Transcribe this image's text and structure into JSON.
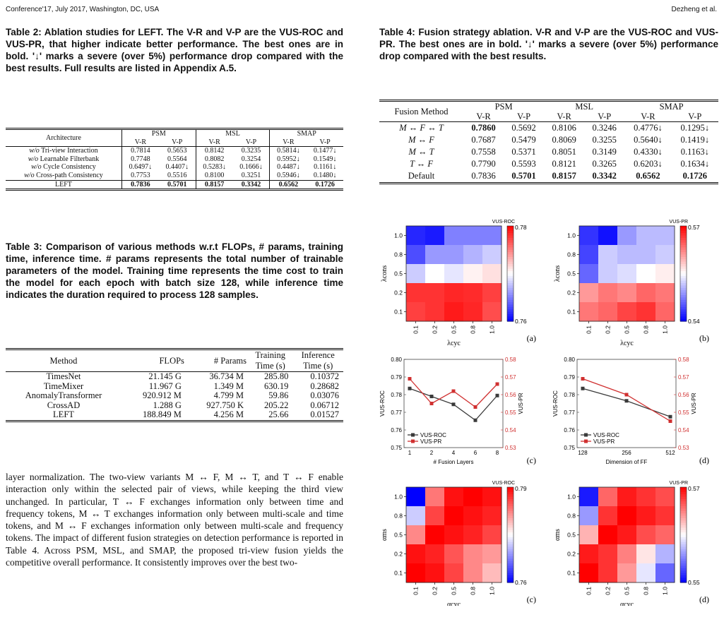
{
  "header": {
    "left": "Conference'17, July 2017, Washington, DC, USA",
    "right": "Dezheng et al."
  },
  "table2": {
    "caption": "Table 2: Ablation studies for LEFT. The V-R and V-P are the VUS-ROC and VUS-PR, that higher indicate better performance. The best ones are in bold. '↓' marks a severe (over 5%) performance drop compared with the best results. Full results are listed in Appendix A.5.",
    "col_arch": "Architecture",
    "datasets": [
      "PSM",
      "MSL",
      "SMAP"
    ],
    "sub": [
      "V-R",
      "V-P",
      "V-R",
      "V-P",
      "V-R",
      "V-P"
    ],
    "rows": [
      {
        "label": "w/o Tri-view Interaction",
        "cells": [
          "0.7814",
          "0.5653",
          "0.8142",
          "0.3235",
          "0.5814↓",
          "0.1477↓"
        ]
      },
      {
        "label": "w/o Learnable Filterbank",
        "cells": [
          "0.7748",
          "0.5564",
          "0.8082",
          "0.3254",
          "0.5952↓",
          "0.1549↓"
        ]
      },
      {
        "label": "w/o Cycle Consistency",
        "cells": [
          "0.6497↓",
          "0.4407↓",
          "0.5283↓",
          "0.1666↓",
          "0.4487↓",
          "0.1161↓"
        ]
      },
      {
        "label": "w/o Cross-path Consistency",
        "cells": [
          "0.7753",
          "0.5516",
          "0.8100",
          "0.3251",
          "0.5946↓",
          "0.1480↓"
        ]
      },
      {
        "label": "LEFT",
        "cells": [
          "0.7836",
          "0.5701",
          "0.8157",
          "0.3342",
          "0.6562",
          "0.1726"
        ]
      }
    ]
  },
  "table3": {
    "caption": "Table 3: Comparison of various methods w.r.t FLOPs, # params, training time, inference time. # params represents the total number of trainable parameters of the model. Training time represents the time cost to train the model for each epoch with batch size 128, while inference time indicates the duration required to process 128 samples.",
    "headers": {
      "method": "Method",
      "flops": "FLOPs",
      "params": "# Params",
      "train1": "Training",
      "train2": "Time (s)",
      "inf1": "Inference",
      "inf2": "Time (s)"
    },
    "rows": [
      {
        "method": "TimesNet",
        "flops": "21.145 G",
        "params": "36.734 M",
        "train": "285.80",
        "inf": "0.10372"
      },
      {
        "method": "TimeMixer",
        "flops": "11.967 G",
        "params": "1.349 M",
        "train": "630.19",
        "inf": "0.28682"
      },
      {
        "method": "AnomalyTransformer",
        "flops": "920.912 M",
        "params": "4.799 M",
        "train": "59.86",
        "inf": "0.03076"
      },
      {
        "method": "CrossAD",
        "flops": "1.288 G",
        "params": "927.750 K",
        "train": "205.22",
        "inf": "0.06712"
      },
      {
        "method": "LEFT",
        "flops": "188.849 M",
        "params": "4.256 M",
        "train": "25.66",
        "inf": "0.01527"
      }
    ]
  },
  "body_text": "layer normalization. The two-view variants M ↔ F, M ↔ T, and T ↔ F enable interaction only within the selected pair of views, while keeping the third view unchanged. In particular, T ↔ F exchanges information only between time and frequency tokens, M ↔ T exchanges information only between multi-scale and time tokens, and M ↔ F exchanges information only between multi-scale and frequency tokens. The impact of different fusion strategies on detection performance is reported in Table 4. Across PSM, MSL, and SMAP, the proposed tri-view fusion yields the competitive overall performance. It consistently improves over the best two-",
  "table4": {
    "caption": "Table 4: Fusion strategy ablation. V-R and V-P are the VUS-ROC and VUS-PR. The best ones are in bold. '↓' marks a severe (over 5%) performance drop compared with the best results.",
    "col_method": "Fusion Method",
    "datasets": [
      "PSM",
      "MSL",
      "SMAP"
    ],
    "sub": [
      "V-R",
      "V-P",
      "V-R",
      "V-P",
      "V-R",
      "V-P"
    ],
    "rows": [
      {
        "label": "M ↔ F ↔ T",
        "cells": [
          "0.7860",
          "0.5692",
          "0.8106",
          "0.3246",
          "0.4776↓",
          "0.1295↓"
        ]
      },
      {
        "label": "M ↔ F",
        "cells": [
          "0.7687",
          "0.5479",
          "0.8069",
          "0.3255",
          "0.5640↓",
          "0.1419↓"
        ]
      },
      {
        "label": "M ↔ T",
        "cells": [
          "0.7558",
          "0.5371",
          "0.8051",
          "0.3149",
          "0.4330↓",
          "0.1163↓"
        ]
      },
      {
        "label": "T ↔ F",
        "cells": [
          "0.7790",
          "0.5593",
          "0.8121",
          "0.3265",
          "0.6203↓",
          "0.1634↓"
        ]
      },
      {
        "label": "Default",
        "cells": [
          "0.7836",
          "0.5701",
          "0.8157",
          "0.3342",
          "0.6562",
          "0.1726"
        ]
      }
    ]
  },
  "figure": {
    "panel_labels": [
      "(a)",
      "(b)",
      "(c)",
      "(d)",
      "(c)",
      "(d)"
    ],
    "colors": {
      "low": "#0000ff",
      "mid": "#ffffff",
      "high": "#ff0000",
      "roc_line": "#3a3a3a",
      "pr_line": "#d03030"
    }
  },
  "chart_data": [
    {
      "type": "heatmap",
      "panel": "(a)",
      "title": "VUS-ROC",
      "xlabel": "λcyc",
      "ylabel": "λcons",
      "x": [
        "0.1",
        "0.2",
        "0.5",
        "0.8",
        "1.0"
      ],
      "y": [
        "1.0",
        "0.8",
        "0.5",
        "0.2",
        "0.1"
      ],
      "colorbar": {
        "min": 0.76,
        "max": 0.78,
        "ticks": [
          "0.78",
          "0.76"
        ]
      },
      "values": [
        [
          0.7615,
          0.761,
          0.765,
          0.765,
          0.765
        ],
        [
          0.763,
          0.766,
          0.766,
          0.767,
          0.768
        ],
        [
          0.768,
          0.77,
          0.769,
          0.7705,
          0.7712
        ],
        [
          0.778,
          0.778,
          0.7785,
          0.7783,
          0.7775
        ],
        [
          0.7775,
          0.778,
          0.779,
          0.7785,
          0.777
        ]
      ]
    },
    {
      "type": "heatmap",
      "panel": "(b)",
      "title": "VUS-PR",
      "xlabel": "λcyc",
      "ylabel": "λcons",
      "x": [
        "0.1",
        "0.2",
        "0.5",
        "0.8",
        "1.0"
      ],
      "y": [
        "1.0",
        "0.8",
        "0.5",
        "0.2",
        "0.1"
      ],
      "colorbar": {
        "min": 0.54,
        "max": 0.57,
        "ticks": [
          "0.57",
          "0.54"
        ]
      },
      "values": [
        [
          0.543,
          0.541,
          0.549,
          0.551,
          0.551
        ],
        [
          0.544,
          0.552,
          0.551,
          0.551,
          0.552
        ],
        [
          0.546,
          0.552,
          0.553,
          0.555,
          0.556
        ],
        [
          0.561,
          0.563,
          0.562,
          0.564,
          0.563
        ],
        [
          0.563,
          0.564,
          0.566,
          0.567,
          0.564
        ]
      ]
    },
    {
      "type": "line",
      "panel": "(c)",
      "xlabel": "# Fusion Layers",
      "ylabel": "VUS-ROC",
      "ylabel_right": "VUS-PR",
      "x": [
        "1",
        "2",
        "4",
        "6",
        "8"
      ],
      "ylim": [
        0.75,
        0.8
      ],
      "ylim_right": [
        0.53,
        0.58
      ],
      "yticks": [
        "0.80",
        "0.79",
        "0.78",
        "0.77",
        "0.76",
        "0.75"
      ],
      "yticks_right": [
        "0.58",
        "0.57",
        "0.56",
        "0.55",
        "0.54",
        "0.53"
      ],
      "series": [
        {
          "name": "VUS-ROC",
          "values": [
            0.7835,
            0.779,
            0.7745,
            0.7655,
            0.7795
          ],
          "axis": "left"
        },
        {
          "name": "VUS-PR",
          "values": [
            0.569,
            0.555,
            0.562,
            0.553,
            0.566
          ],
          "axis": "right"
        }
      ]
    },
    {
      "type": "line",
      "panel": "(d)",
      "xlabel": "Dimension of FF",
      "ylabel": "VUS-ROC",
      "ylabel_right": "VUS-PR",
      "x": [
        "128",
        "256",
        "512"
      ],
      "ylim": [
        0.75,
        0.8
      ],
      "ylim_right": [
        0.53,
        0.58
      ],
      "yticks": [
        "0.80",
        "0.79",
        "0.78",
        "0.77",
        "0.76",
        "0.75"
      ],
      "yticks_right": [
        "0.58",
        "0.57",
        "0.56",
        "0.55",
        "0.54",
        "0.53"
      ],
      "series": [
        {
          "name": "VUS-ROC",
          "values": [
            0.7835,
            0.7765,
            0.7675
          ],
          "axis": "left"
        },
        {
          "name": "VUS-PR",
          "values": [
            0.569,
            0.56,
            0.545
          ],
          "axis": "right"
        }
      ]
    },
    {
      "type": "heatmap",
      "panel": "(c)",
      "title": "VUS-ROC",
      "xlabel": "αcyc",
      "ylabel": "αms",
      "x": [
        "0.1",
        "0.2",
        "0.5",
        "0.8",
        "1.0"
      ],
      "y": [
        "1.0",
        "0.8",
        "0.5",
        "0.2",
        "0.1"
      ],
      "colorbar": {
        "min": 0.76,
        "max": 0.79,
        "ticks": [
          "0.79",
          "0.76"
        ]
      },
      "values": [
        [
          0.76,
          0.783,
          0.789,
          0.79,
          0.789
        ],
        [
          0.772,
          0.786,
          0.79,
          0.789,
          0.788
        ],
        [
          0.782,
          0.79,
          0.789,
          0.788,
          0.786
        ],
        [
          0.789,
          0.788,
          0.785,
          0.782,
          0.781
        ],
        [
          0.79,
          0.789,
          0.786,
          0.782,
          0.779
        ]
      ]
    },
    {
      "type": "heatmap",
      "panel": "(d)",
      "title": "VUS-PR",
      "xlabel": "αcyc",
      "ylabel": "αms",
      "x": [
        "0.1",
        "0.2",
        "0.5",
        "0.8",
        "1.0"
      ],
      "y": [
        "1.0",
        "0.8",
        "0.5",
        "0.2",
        "0.1"
      ],
      "colorbar": {
        "min": 0.55,
        "max": 0.57,
        "ticks": [
          "0.57",
          "0.55"
        ]
      },
      "values": [
        [
          0.551,
          0.566,
          0.569,
          0.568,
          0.567
        ],
        [
          0.556,
          0.568,
          0.57,
          0.569,
          0.568
        ],
        [
          0.563,
          0.57,
          0.569,
          0.567,
          0.566
        ],
        [
          0.569,
          0.568,
          0.565,
          0.561,
          0.557
        ],
        [
          0.57,
          0.568,
          0.564,
          0.559,
          0.554
        ]
      ]
    }
  ]
}
